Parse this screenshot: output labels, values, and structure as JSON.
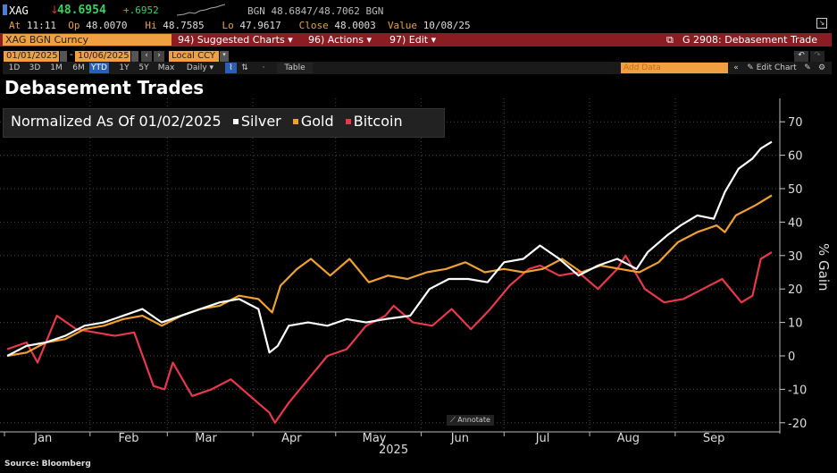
{
  "header": {
    "ticker": "XAG",
    "price": "48.6954",
    "change": "+.6952",
    "bid_ask": "BGN 48.6847/48.7062 BGN",
    "at_label": "At",
    "at": "11:11",
    "op_label": "Op",
    "op": "48.0070",
    "hi_label": "Hi",
    "hi": "48.7585",
    "lo_label": "Lo",
    "lo": "47.9617",
    "close_label": "Close",
    "close": "48.0003",
    "value_label": "Value",
    "value": "10/08/25"
  },
  "command": {
    "security": "XAG BGN Curncy",
    "suggested": "94) Suggested Charts ▾",
    "actions": "96) Actions ▾",
    "edit": "97) Edit ▾",
    "page": "G 2908: Debasement Trade"
  },
  "range": {
    "start": "01/01/2025",
    "end": "10/06/2025",
    "currency": "Local CCY"
  },
  "periods": [
    "1D",
    "3D",
    "1M",
    "6M",
    "YTD",
    "1Y",
    "5Y",
    "Max"
  ],
  "active_period": "YTD",
  "frequency": "Daily ▾",
  "table": "Table",
  "add_data": "Add Data",
  "edit_chart": "Edit Chart",
  "annotate": "Annotate",
  "title": "Debasement Trades",
  "source": "Source:  Bloomberg",
  "colors": {
    "silver": "#ffffff",
    "gold": "#f0a030",
    "bitcoin": "#e8384a",
    "accent_bar": "#8b1c22"
  },
  "chart_data": {
    "type": "line",
    "legend_title": "Normalized As Of 01/02/2025",
    "ylabel": "% Gain",
    "xlabel": "2025",
    "ylim": [
      -22,
      75
    ],
    "yticks": [
      -20,
      -10,
      0,
      10,
      20,
      30,
      40,
      50,
      60,
      70
    ],
    "xticks": [
      "Jan",
      "Feb",
      "Mar",
      "Apr",
      "May",
      "Jun",
      "Jul",
      "Aug",
      "Sep"
    ],
    "grid": true,
    "legend_placement": "top-left",
    "series": [
      {
        "name": "Silver",
        "color": "#ffffff",
        "points": [
          [
            "2025-01-02",
            0
          ],
          [
            "2025-01-09",
            3
          ],
          [
            "2025-01-16",
            4
          ],
          [
            "2025-01-23",
            6
          ],
          [
            "2025-01-30",
            9
          ],
          [
            "2025-02-06",
            10
          ],
          [
            "2025-02-13",
            12
          ],
          [
            "2025-02-20",
            14
          ],
          [
            "2025-02-27",
            10
          ],
          [
            "2025-03-06",
            12
          ],
          [
            "2025-03-13",
            14
          ],
          [
            "2025-03-20",
            16
          ],
          [
            "2025-03-27",
            17
          ],
          [
            "2025-04-03",
            14
          ],
          [
            "2025-04-07",
            1
          ],
          [
            "2025-04-10",
            3
          ],
          [
            "2025-04-14",
            9
          ],
          [
            "2025-04-21",
            10
          ],
          [
            "2025-04-28",
            9
          ],
          [
            "2025-05-05",
            11
          ],
          [
            "2025-05-12",
            10
          ],
          [
            "2025-05-19",
            11
          ],
          [
            "2025-05-28",
            12
          ],
          [
            "2025-06-04",
            20
          ],
          [
            "2025-06-11",
            23
          ],
          [
            "2025-06-18",
            23
          ],
          [
            "2025-06-25",
            22
          ],
          [
            "2025-07-01",
            28
          ],
          [
            "2025-07-08",
            29
          ],
          [
            "2025-07-14",
            33
          ],
          [
            "2025-07-21",
            29
          ],
          [
            "2025-07-28",
            24
          ],
          [
            "2025-08-04",
            27
          ],
          [
            "2025-08-11",
            29
          ],
          [
            "2025-08-18",
            26
          ],
          [
            "2025-08-22",
            31
          ],
          [
            "2025-08-29",
            36
          ],
          [
            "2025-09-03",
            39
          ],
          [
            "2025-09-09",
            42
          ],
          [
            "2025-09-15",
            41
          ],
          [
            "2025-09-19",
            49
          ],
          [
            "2025-09-24",
            56
          ],
          [
            "2025-09-29",
            59
          ],
          [
            "2025-10-02",
            62
          ],
          [
            "2025-10-06",
            64
          ]
        ]
      },
      {
        "name": "Gold",
        "color": "#f0a030",
        "points": [
          [
            "2025-01-02",
            0
          ],
          [
            "2025-01-09",
            1
          ],
          [
            "2025-01-16",
            4
          ],
          [
            "2025-01-23",
            5
          ],
          [
            "2025-01-30",
            8
          ],
          [
            "2025-02-06",
            9
          ],
          [
            "2025-02-13",
            11
          ],
          [
            "2025-02-20",
            12
          ],
          [
            "2025-02-27",
            9
          ],
          [
            "2025-03-06",
            12
          ],
          [
            "2025-03-13",
            14
          ],
          [
            "2025-03-20",
            15
          ],
          [
            "2025-03-27",
            18
          ],
          [
            "2025-04-03",
            17
          ],
          [
            "2025-04-08",
            13
          ],
          [
            "2025-04-11",
            21
          ],
          [
            "2025-04-17",
            26
          ],
          [
            "2025-04-22",
            29
          ],
          [
            "2025-04-29",
            24
          ],
          [
            "2025-05-06",
            29
          ],
          [
            "2025-05-13",
            22
          ],
          [
            "2025-05-20",
            24
          ],
          [
            "2025-05-27",
            23
          ],
          [
            "2025-06-03",
            25
          ],
          [
            "2025-06-10",
            26
          ],
          [
            "2025-06-17",
            28
          ],
          [
            "2025-06-24",
            25
          ],
          [
            "2025-07-01",
            26
          ],
          [
            "2025-07-08",
            25
          ],
          [
            "2025-07-15",
            26
          ],
          [
            "2025-07-22",
            29
          ],
          [
            "2025-07-29",
            25
          ],
          [
            "2025-08-05",
            27
          ],
          [
            "2025-08-12",
            26
          ],
          [
            "2025-08-19",
            25
          ],
          [
            "2025-08-26",
            28
          ],
          [
            "2025-09-02",
            34
          ],
          [
            "2025-09-09",
            37
          ],
          [
            "2025-09-16",
            39
          ],
          [
            "2025-09-19",
            37
          ],
          [
            "2025-09-23",
            42
          ],
          [
            "2025-09-30",
            45
          ],
          [
            "2025-10-06",
            48
          ]
        ]
      },
      {
        "name": "Bitcoin",
        "color": "#e8384a",
        "points": [
          [
            "2025-01-02",
            2
          ],
          [
            "2025-01-09",
            4
          ],
          [
            "2025-01-13",
            -2
          ],
          [
            "2025-01-20",
            12
          ],
          [
            "2025-01-27",
            8
          ],
          [
            "2025-02-03",
            7
          ],
          [
            "2025-02-10",
            6
          ],
          [
            "2025-02-17",
            7
          ],
          [
            "2025-02-24",
            -9
          ],
          [
            "2025-02-28",
            -10
          ],
          [
            "2025-03-03",
            -2
          ],
          [
            "2025-03-10",
            -12
          ],
          [
            "2025-03-17",
            -10
          ],
          [
            "2025-03-24",
            -7
          ],
          [
            "2025-03-31",
            -12
          ],
          [
            "2025-04-07",
            -17
          ],
          [
            "2025-04-09",
            -20
          ],
          [
            "2025-04-14",
            -14
          ],
          [
            "2025-04-21",
            -7
          ],
          [
            "2025-04-28",
            0
          ],
          [
            "2025-05-05",
            2
          ],
          [
            "2025-05-12",
            9
          ],
          [
            "2025-05-19",
            12
          ],
          [
            "2025-05-22",
            15
          ],
          [
            "2025-05-29",
            10
          ],
          [
            "2025-06-05",
            9
          ],
          [
            "2025-06-12",
            14
          ],
          [
            "2025-06-19",
            8
          ],
          [
            "2025-06-26",
            14
          ],
          [
            "2025-07-03",
            21
          ],
          [
            "2025-07-10",
            26
          ],
          [
            "2025-07-14",
            27
          ],
          [
            "2025-07-21",
            24
          ],
          [
            "2025-07-28",
            25
          ],
          [
            "2025-08-04",
            20
          ],
          [
            "2025-08-11",
            26
          ],
          [
            "2025-08-14",
            30
          ],
          [
            "2025-08-21",
            20
          ],
          [
            "2025-08-28",
            16
          ],
          [
            "2025-09-04",
            17
          ],
          [
            "2025-09-11",
            20
          ],
          [
            "2025-09-18",
            23
          ],
          [
            "2025-09-25",
            16
          ],
          [
            "2025-09-29",
            18
          ],
          [
            "2025-10-02",
            29
          ],
          [
            "2025-10-06",
            31
          ]
        ]
      }
    ]
  }
}
